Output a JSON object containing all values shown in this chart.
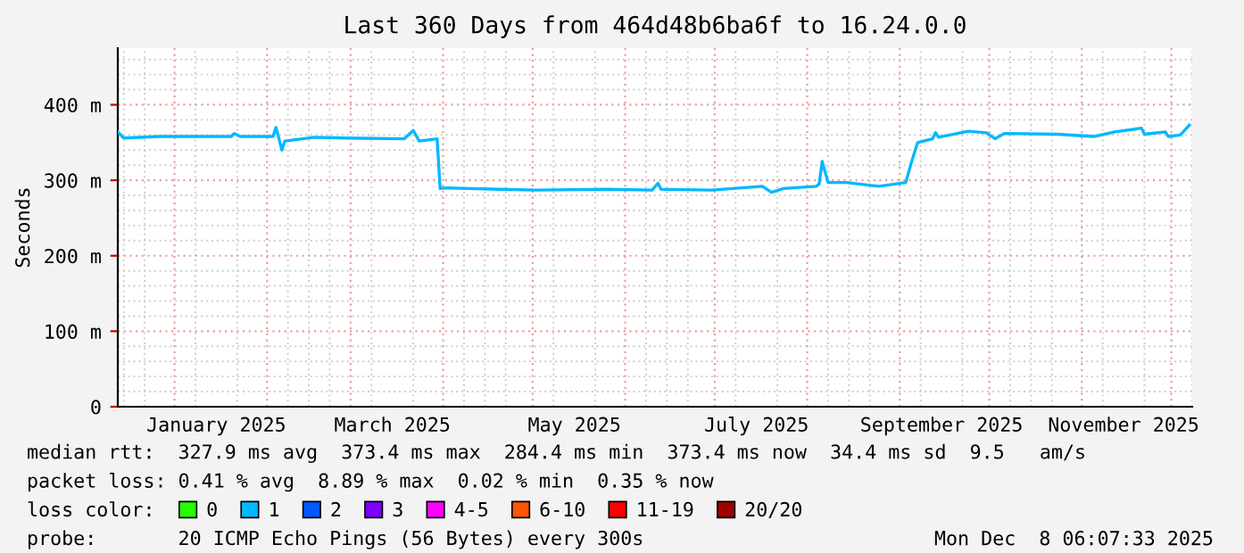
{
  "chart_data": {
    "type": "line",
    "title": "Last 360 Days from 464d48b6ba6f to 16.24.0.0",
    "ylabel": "Seconds",
    "legend_title": "loss color:",
    "x": [
      "2024-12-13",
      "2024-12-15",
      "2024-12-27",
      "2025-01-08",
      "2025-01-20",
      "2025-01-21",
      "2025-01-23",
      "2025-02-03",
      "2025-02-04",
      "2025-02-06",
      "2025-02-07",
      "2025-02-17",
      "2025-02-27",
      "2025-03-19",
      "2025-03-22",
      "2025-03-24",
      "2025-03-30",
      "2025-03-31",
      "2025-04-02",
      "2025-04-20",
      "2025-05-02",
      "2025-05-26",
      "2025-06-10",
      "2025-06-12",
      "2025-06-13",
      "2025-06-30",
      "2025-07-17",
      "2025-07-20",
      "2025-07-24",
      "2025-08-04",
      "2025-08-05",
      "2025-08-06",
      "2025-08-08",
      "2025-08-14",
      "2025-08-25",
      "2025-09-03",
      "2025-09-05",
      "2025-09-07",
      "2025-09-12",
      "2025-09-13",
      "2025-09-14",
      "2025-09-24",
      "2025-09-30",
      "2025-10-03",
      "2025-10-06",
      "2025-10-24",
      "2025-11-05",
      "2025-11-12",
      "2025-11-21",
      "2025-11-22",
      "2025-11-29",
      "2025-11-30",
      "2025-12-04",
      "2025-12-07"
    ],
    "series": [
      {
        "name": "0",
        "color": "#26ff00",
        "values": [
          null,
          null,
          null,
          null,
          null,
          null,
          null,
          null,
          null,
          null,
          null,
          null,
          null,
          null,
          null,
          null,
          null,
          null,
          null,
          null,
          null,
          null,
          null,
          null,
          null,
          null,
          null,
          null,
          null,
          null,
          null,
          null,
          null,
          null,
          null,
          null,
          null,
          null,
          null,
          null,
          null,
          null,
          null,
          null,
          null,
          null,
          null,
          null,
          null,
          null,
          null,
          null,
          null,
          null
        ]
      },
      {
        "name": "1",
        "color": "#00b8ff",
        "values": [
          364,
          356,
          358,
          358,
          358,
          362,
          358,
          358,
          370,
          340,
          352,
          357,
          356,
          355,
          366,
          352,
          355,
          289,
          290,
          288,
          287,
          288,
          287,
          296,
          288,
          287,
          292,
          284,
          289,
          292,
          295,
          325,
          297,
          297,
          292,
          297,
          325,
          350,
          355,
          363,
          357,
          365,
          363,
          355,
          362,
          361,
          358,
          364,
          369,
          361,
          364,
          358,
          360,
          373
        ]
      },
      {
        "name": "2",
        "color": "#0059ff",
        "values": [
          null,
          null,
          null,
          null,
          null,
          null,
          null,
          null,
          null,
          null,
          null,
          null,
          null,
          null,
          null,
          null,
          null,
          null,
          null,
          null,
          null,
          null,
          null,
          null,
          null,
          null,
          null,
          null,
          null,
          null,
          null,
          null,
          null,
          null,
          null,
          null,
          null,
          null,
          null,
          null,
          null,
          null,
          null,
          null,
          null,
          null,
          null,
          null,
          null,
          null,
          null,
          null,
          null,
          null
        ]
      },
      {
        "name": "3",
        "color": "#7e00ff",
        "values": [
          null,
          null,
          null,
          null,
          null,
          null,
          null,
          null,
          null,
          null,
          null,
          null,
          null,
          null,
          null,
          null,
          null,
          null,
          null,
          null,
          null,
          null,
          null,
          null,
          null,
          null,
          null,
          null,
          null,
          null,
          null,
          null,
          null,
          null,
          null,
          null,
          null,
          null,
          null,
          null,
          null,
          null,
          null,
          null,
          null,
          null,
          null,
          null,
          null,
          null,
          null,
          null,
          null,
          null
        ]
      },
      {
        "name": "4-5",
        "color": "#ff00ff",
        "values": [
          null,
          null,
          null,
          null,
          null,
          null,
          null,
          null,
          null,
          null,
          null,
          null,
          null,
          null,
          null,
          null,
          null,
          null,
          null,
          null,
          null,
          null,
          null,
          null,
          null,
          null,
          null,
          null,
          null,
          null,
          null,
          null,
          null,
          null,
          null,
          null,
          null,
          null,
          null,
          null,
          null,
          null,
          null,
          null,
          null,
          null,
          null,
          null,
          null,
          null,
          null,
          null,
          null,
          null
        ]
      },
      {
        "name": "6-10",
        "color": "#ff5500",
        "values": [
          null,
          null,
          null,
          null,
          null,
          null,
          null,
          null,
          null,
          null,
          null,
          null,
          null,
          null,
          null,
          null,
          null,
          null,
          null,
          null,
          null,
          null,
          null,
          null,
          null,
          null,
          null,
          null,
          null,
          null,
          null,
          null,
          null,
          null,
          null,
          null,
          null,
          null,
          null,
          null,
          null,
          null,
          null,
          null,
          null,
          null,
          null,
          null,
          null,
          null,
          null,
          null,
          null,
          null
        ]
      },
      {
        "name": "11-19",
        "color": "#ff0000",
        "values": [
          null,
          null,
          null,
          null,
          null,
          null,
          null,
          null,
          null,
          null,
          null,
          null,
          null,
          null,
          null,
          null,
          null,
          null,
          null,
          null,
          null,
          null,
          null,
          null,
          null,
          null,
          null,
          null,
          null,
          null,
          null,
          null,
          null,
          null,
          null,
          null,
          null,
          null,
          null,
          null,
          null,
          null,
          null,
          null,
          null,
          null,
          null,
          null,
          null,
          null,
          null,
          null,
          null,
          null
        ]
      },
      {
        "name": "20/20",
        "color": "#a10000",
        "values": [
          null,
          null,
          null,
          null,
          null,
          null,
          null,
          null,
          null,
          null,
          null,
          null,
          null,
          null,
          null,
          null,
          null,
          null,
          null,
          null,
          null,
          null,
          null,
          null,
          null,
          null,
          null,
          null,
          null,
          null,
          null,
          null,
          null,
          null,
          null,
          null,
          null,
          null,
          null,
          null,
          null,
          null,
          null,
          null,
          null,
          null,
          null,
          null,
          null,
          null,
          null,
          null,
          null,
          null
        ]
      }
    ],
    "xlim": [
      "2024-12-13",
      "2025-12-08"
    ],
    "xticks": [
      {
        "value": "2025-01-01",
        "label": null
      },
      {
        "value": "2025-01-15",
        "label": "January 2025"
      },
      {
        "value": "2025-02-01",
        "label": null
      },
      {
        "value": "2025-03-01",
        "label": null
      },
      {
        "value": "2025-03-15",
        "label": "March 2025"
      },
      {
        "value": "2025-04-01",
        "label": null
      },
      {
        "value": "2025-05-01",
        "label": null
      },
      {
        "value": "2025-05-15",
        "label": "May 2025"
      },
      {
        "value": "2025-06-01",
        "label": null
      },
      {
        "value": "2025-07-01",
        "label": null
      },
      {
        "value": "2025-07-15",
        "label": "July 2025"
      },
      {
        "value": "2025-08-01",
        "label": null
      },
      {
        "value": "2025-09-01",
        "label": null
      },
      {
        "value": "2025-09-15",
        "label": "September 2025"
      },
      {
        "value": "2025-10-01",
        "label": null
      },
      {
        "value": "2025-11-01",
        "label": null
      },
      {
        "value": "2025-11-15",
        "label": "November 2025"
      },
      {
        "value": "2025-12-01",
        "label": null
      }
    ],
    "ylim": [
      0,
      475
    ],
    "yticks": [
      {
        "value": 0,
        "label": "0"
      },
      {
        "value": 100,
        "label": "100 m"
      },
      {
        "value": 200,
        "label": "200 m"
      },
      {
        "value": 300,
        "label": "300 m"
      },
      {
        "value": 400,
        "label": "400 m"
      }
    ],
    "grid": true,
    "legend": "bottom",
    "marker": "none",
    "line_style": "solid",
    "annotations": [
      "median rtt:  327.9 ms avg  373.4 ms max  284.4 ms min  373.4 ms now  34.4 ms sd  9.5   am/s",
      "packet loss: 0.41 % avg  8.89 % max  0.02 % min  0.35 % now",
      "probe:       20 ICMP Echo Pings (56 Bytes) every 300s",
      "Mon Dec  8 06:07:33 2025"
    ]
  }
}
